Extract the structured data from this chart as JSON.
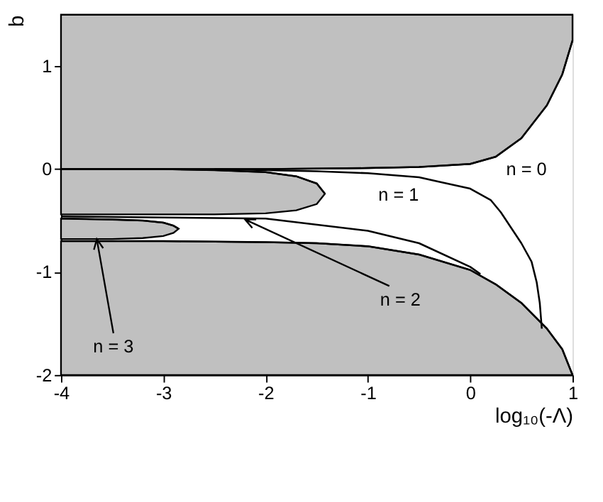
{
  "chart_data": {
    "type": "line",
    "xlabel": "log₁₀(-Λ)",
    "ylabel": "b",
    "xlim": [
      -4,
      1
    ],
    "ylim": [
      -2,
      1.5
    ],
    "xticks": [
      -4,
      -3,
      -2,
      -1,
      0,
      1
    ],
    "yticks": [
      -2,
      -1,
      0,
      1
    ],
    "grid": false,
    "marker": "none",
    "line_style": "solid",
    "series": [
      {
        "color": "#000000",
        "x": [
          -4,
          -3,
          -2,
          -1,
          -0.5,
          0,
          0.25,
          0.5,
          0.75,
          0.9,
          1
        ],
        "values": [
          0,
          0,
          0,
          0.01,
          0.02,
          0.05,
          0.12,
          0.3,
          0.62,
          0.92,
          1.25
        ],
        "lower": [
          0,
          0,
          0,
          0.01,
          0.02,
          0.05,
          0.12,
          0.3,
          0.62,
          0.92,
          1.25
        ],
        "upper": [
          1.5,
          1.5,
          1.5,
          1.5,
          1.5,
          1.5,
          1.5,
          1.5,
          1.5,
          1.5,
          1.5
        ]
      },
      {
        "color": "#000000",
        "x": [
          -4,
          -3,
          -2.5,
          -2,
          -1.7,
          -1.5,
          -1.42
        ],
        "values": [
          0,
          0,
          -0.01,
          -0.03,
          -0.07,
          -0.14,
          -0.24
        ],
        "lower": [
          -0.44,
          -0.44,
          -0.44,
          -0.43,
          -0.4,
          -0.34,
          -0.24
        ],
        "upper": [
          0,
          0,
          -0.01,
          -0.03,
          -0.07,
          -0.14,
          -0.24
        ]
      },
      {
        "color": "#000000",
        "x": [
          -4,
          -3.5,
          -3.2,
          -3,
          -2.9,
          -2.85
        ],
        "values": [
          -0.48,
          -0.49,
          -0.5,
          -0.52,
          -0.55,
          -0.58
        ],
        "lower": [
          -0.68,
          -0.68,
          -0.67,
          -0.65,
          -0.62,
          -0.58
        ],
        "upper": [
          -0.48,
          -0.49,
          -0.5,
          -0.52,
          -0.55,
          -0.58
        ]
      },
      {
        "color": "#000000",
        "x": [
          -4,
          -3,
          -2,
          -1.5,
          -1,
          -0.5,
          0,
          0.25,
          0.5,
          0.75,
          0.9,
          1
        ],
        "values": [
          -0.7,
          -0.7,
          -0.71,
          -0.72,
          -0.75,
          -0.83,
          -0.98,
          -1.12,
          -1.3,
          -1.55,
          -1.75,
          -2.0
        ],
        "lower": [
          -2,
          -2,
          -2,
          -2,
          -2,
          -2,
          -2,
          -2,
          -2,
          -2,
          -2,
          -2
        ],
        "upper": [
          -0.7,
          -0.7,
          -0.71,
          -0.72,
          -0.75,
          -0.83,
          -0.98,
          -1.12,
          -1.3,
          -1.55,
          -1.75,
          -2.0
        ]
      },
      {
        "color": "#000000",
        "x": [
          -2.5,
          -2,
          -1.5,
          -1,
          -0.5,
          0,
          0.2,
          0.3,
          0.4,
          0.5,
          0.6,
          0.65,
          0.68,
          0.7
        ],
        "values": [
          0,
          -0.01,
          -0.02,
          -0.04,
          -0.08,
          -0.19,
          -0.3,
          -0.42,
          -0.57,
          -0.72,
          -0.9,
          -1.1,
          -1.3,
          -1.55
        ]
      },
      {
        "color": "#000000",
        "x": [
          -4,
          -3,
          -2,
          -1,
          -0.5,
          0,
          0.1
        ],
        "values": [
          -0.46,
          -0.47,
          -0.48,
          -0.6,
          -0.72,
          -0.95,
          -1.02
        ]
      }
    ],
    "annotations": [
      "n = 0",
      "n = 1",
      {
        "text": "n = 2",
        "x": -2.2,
        "y": -0.49
      },
      {
        "text": "n = 3",
        "x": -3.65,
        "y": -0.68
      }
    ]
  }
}
